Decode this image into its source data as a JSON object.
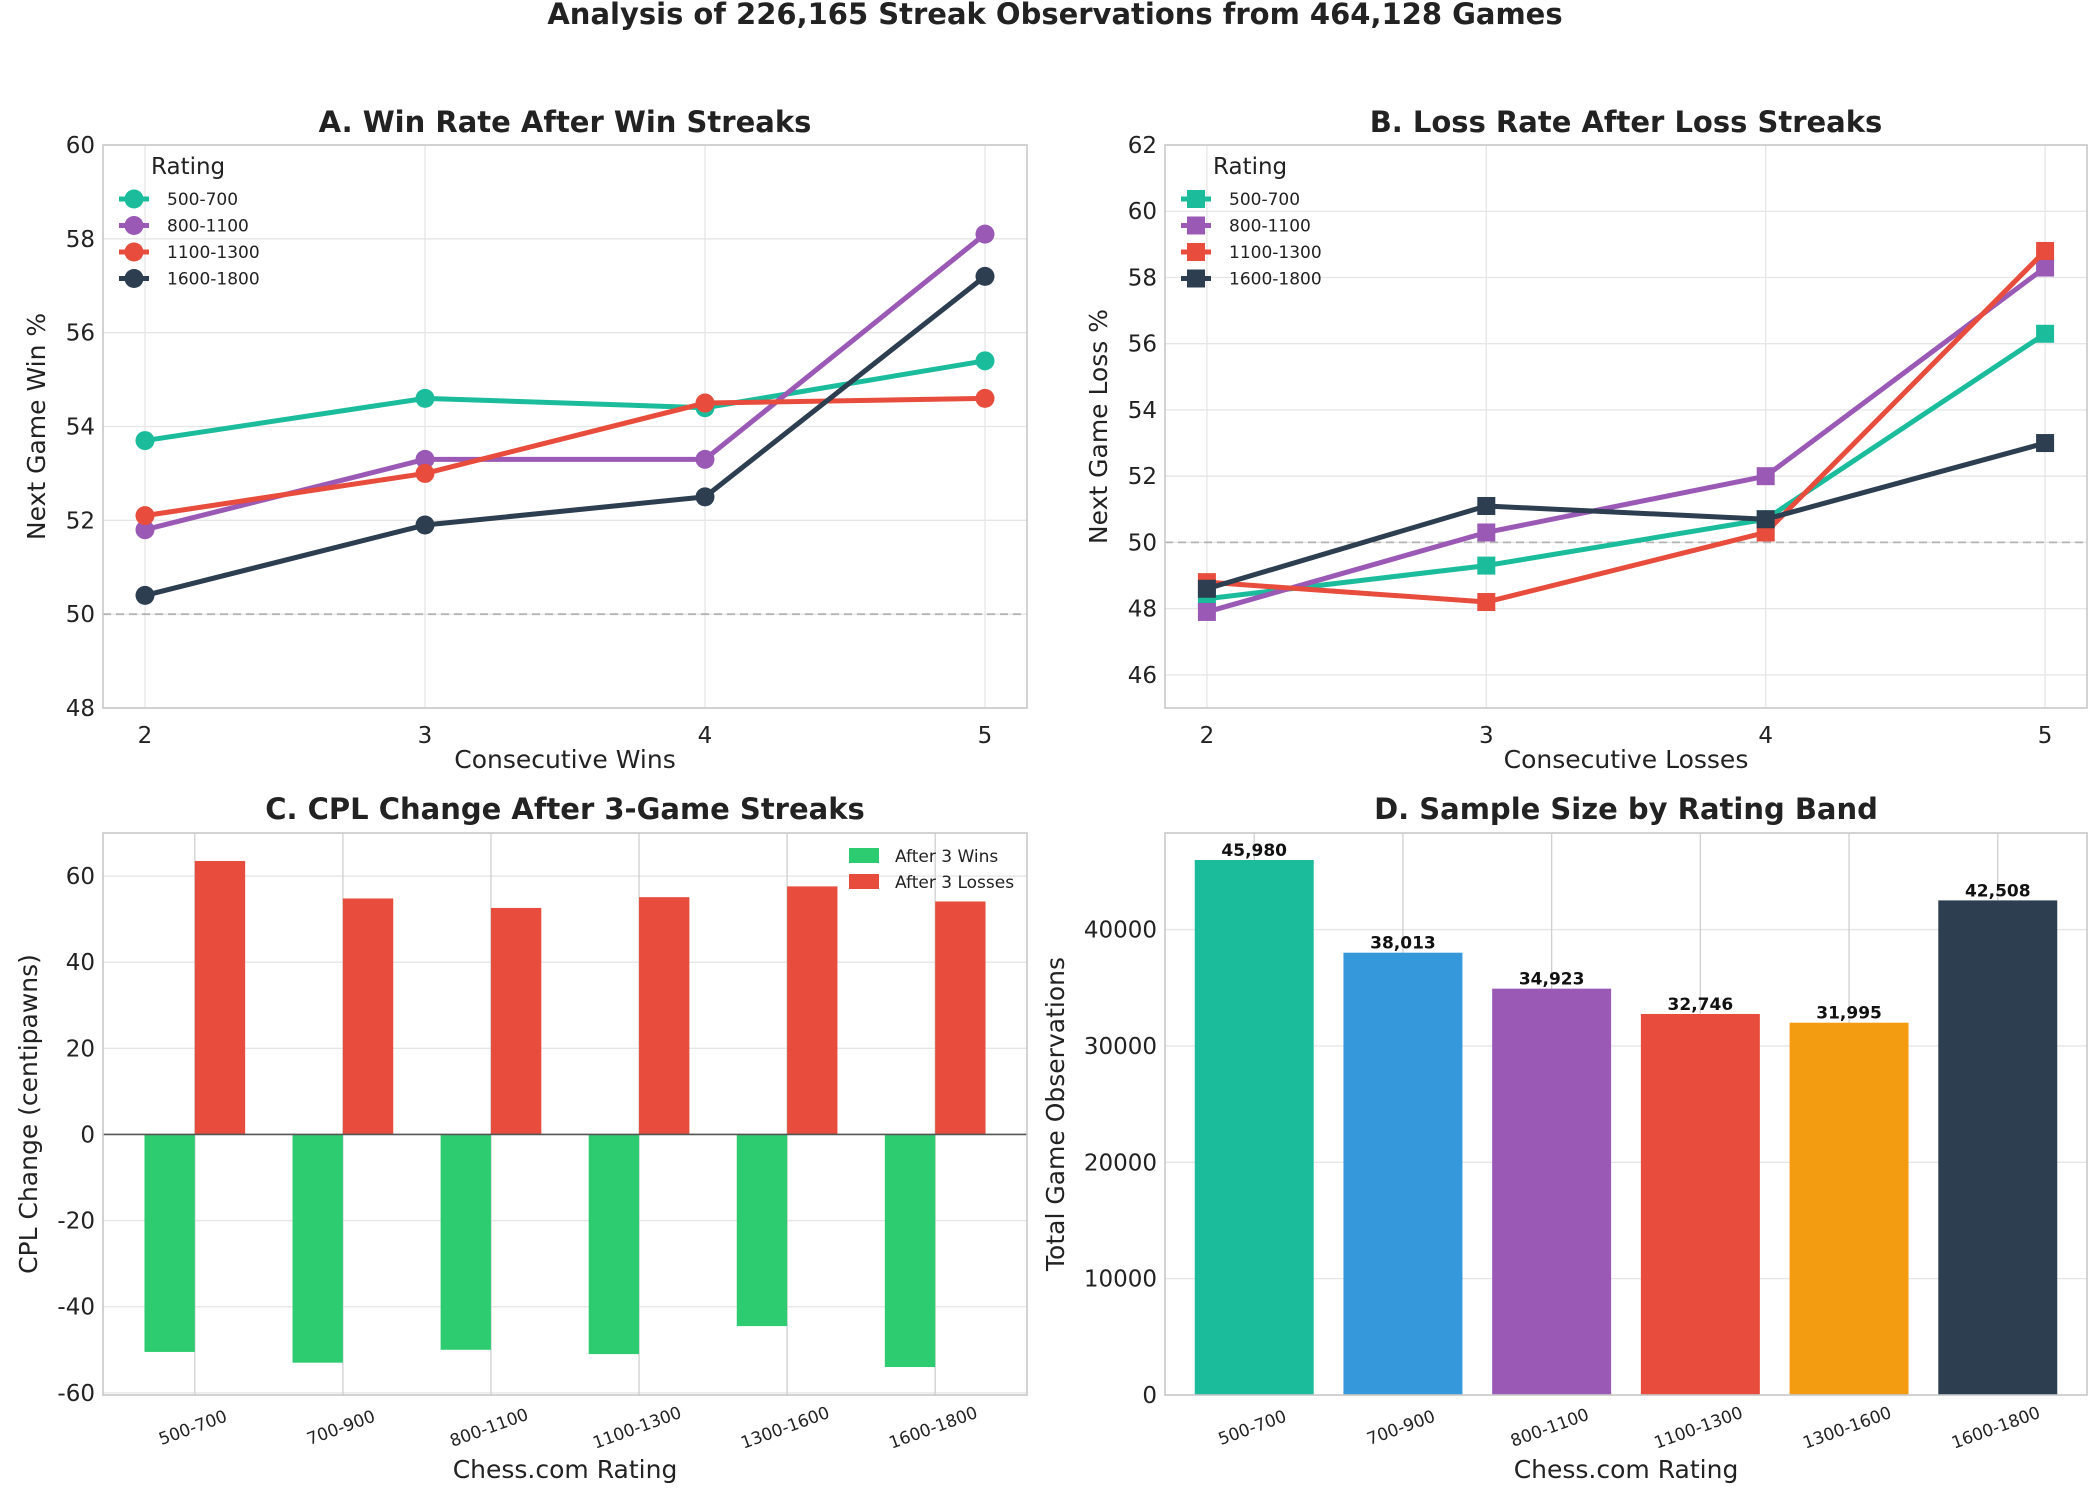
{
  "figure": {
    "title": "Analysis of 226,165 Streak Observations from 464,128 Games"
  },
  "chart_data": [
    {
      "id": "A",
      "type": "line",
      "title": "A. Win Rate After Win Streaks",
      "xlabel": "Consecutive Wins",
      "ylabel": "Next Game Win %",
      "x": [
        2,
        3,
        4,
        5
      ],
      "ylim": [
        48,
        60
      ],
      "yticks": [
        48,
        50,
        52,
        54,
        56,
        58,
        60
      ],
      "reference_line": 50,
      "marker": "circle",
      "legend": {
        "title": "Rating",
        "placement": "top-left"
      },
      "series": [
        {
          "name": "500-700",
          "color": "#1abc9c",
          "values": [
            53.7,
            54.6,
            54.4,
            55.4
          ]
        },
        {
          "name": "800-1100",
          "color": "#9b59b6",
          "values": [
            51.8,
            53.3,
            53.3,
            58.1
          ]
        },
        {
          "name": "1100-1300",
          "color": "#e74c3c",
          "values": [
            52.1,
            53.0,
            54.5,
            54.6
          ]
        },
        {
          "name": "1600-1800",
          "color": "#2c3e50",
          "values": [
            50.4,
            51.9,
            52.5,
            57.2
          ]
        }
      ]
    },
    {
      "id": "B",
      "type": "line",
      "title": "B. Loss Rate After Loss Streaks",
      "xlabel": "Consecutive Losses",
      "ylabel": "Next Game Loss %",
      "x": [
        2,
        3,
        4,
        5
      ],
      "ylim": [
        45.0,
        62
      ],
      "yticks": [
        46,
        48,
        50,
        52,
        54,
        56,
        58,
        60,
        62
      ],
      "reference_line": 50,
      "marker": "square",
      "legend": {
        "title": "Rating",
        "placement": "top-left"
      },
      "series": [
        {
          "name": "500-700",
          "color": "#1abc9c",
          "values": [
            48.3,
            49.3,
            50.7,
            56.3
          ]
        },
        {
          "name": "800-1100",
          "color": "#9b59b6",
          "values": [
            47.9,
            50.3,
            52.0,
            58.3
          ]
        },
        {
          "name": "1100-1300",
          "color": "#e74c3c",
          "values": [
            48.8,
            48.2,
            50.3,
            58.8
          ]
        },
        {
          "name": "1600-1800",
          "color": "#2c3e50",
          "values": [
            48.6,
            51.1,
            50.7,
            53.0
          ]
        }
      ]
    },
    {
      "id": "C",
      "type": "bar",
      "title": "C. CPL Change After 3-Game Streaks",
      "xlabel": "Chess.com Rating",
      "ylabel": "CPL Change (centipawns)",
      "categories": [
        "500-700",
        "700-900",
        "800-1100",
        "1100-1300",
        "1300-1600",
        "1600-1800"
      ],
      "ylim": [
        -60.5,
        70
      ],
      "yticks": [
        -60,
        -40,
        -20,
        0,
        20,
        40,
        60
      ],
      "legend": {
        "placement": "top-right"
      },
      "series": [
        {
          "name": "After 3 Wins",
          "color": "#2ecc71",
          "values": [
            -50.5,
            -53.0,
            -50.0,
            -51.0,
            -44.5,
            -54.0
          ]
        },
        {
          "name": "After 3 Losses",
          "color": "#e74c3c",
          "values": [
            63.5,
            54.8,
            52.6,
            55.1,
            57.6,
            54.1
          ]
        }
      ]
    },
    {
      "id": "D",
      "type": "bar",
      "title": "D. Sample Size by Rating Band",
      "xlabel": "Chess.com Rating",
      "ylabel": "Total Game Observations",
      "categories": [
        "500-700",
        "700-900",
        "800-1100",
        "1100-1300",
        "1300-1600",
        "1600-1800"
      ],
      "values": [
        45980,
        38013,
        34923,
        32746,
        31995,
        42508
      ],
      "value_labels": [
        "45,980",
        "38,013",
        "34,923",
        "32,746",
        "31,995",
        "42,508"
      ],
      "colors": [
        "#1abc9c",
        "#3498db",
        "#9b59b6",
        "#e74c3c",
        "#f39c12",
        "#2c3e50"
      ],
      "ylim": [
        0,
        48300
      ],
      "yticks": [
        0,
        10000,
        20000,
        30000,
        40000
      ]
    }
  ]
}
